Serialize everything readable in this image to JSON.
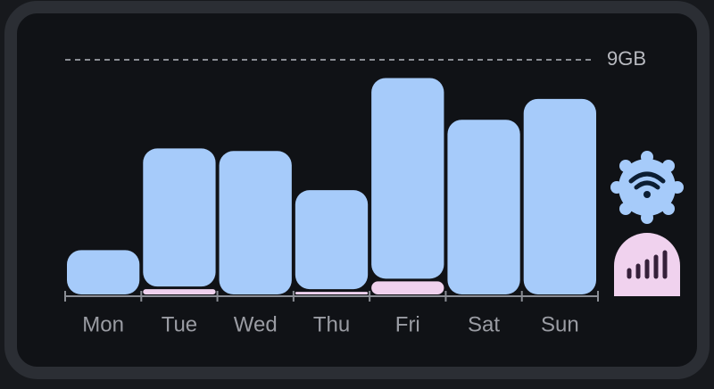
{
  "chart_data": {
    "type": "stacked-bar",
    "categories": [
      "Mon",
      "Tue",
      "Wed",
      "Thu",
      "Fri",
      "Sat",
      "Sun"
    ],
    "series": [
      {
        "color": "#f0d2ee",
        "values": [
          0,
          0.2,
          0,
          0.1,
          0.5,
          0,
          0
        ]
      },
      {
        "color": "#a6cbfa",
        "values": [
          1.7,
          5.4,
          5.5,
          3.9,
          7.8,
          6.7,
          7.5
        ]
      }
    ],
    "ylim": [
      0,
      9
    ],
    "yticks": [
      {
        "value": 9,
        "label": "9GB"
      }
    ],
    "grid": true
  }
}
